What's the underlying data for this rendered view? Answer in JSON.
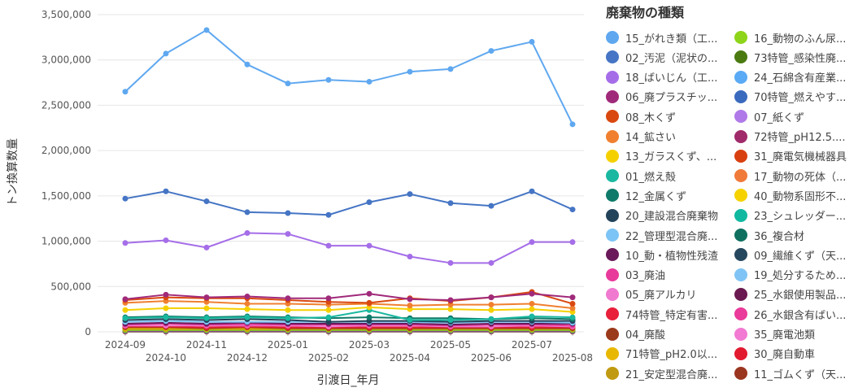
{
  "chart_data": {
    "type": "line",
    "xlabel": "引渡日_年月",
    "ylabel": "トン換算数量",
    "ylim": [
      0,
      3500000
    ],
    "yticks": [
      "0",
      "500,000",
      "1,000,000",
      "1,500,000",
      "2,000,000",
      "2,500,000",
      "3,000,000",
      "3,500,000"
    ],
    "categories": [
      "2024-09",
      "2024-10",
      "2024-11",
      "2024-12",
      "2025-01",
      "2025-02",
      "2025-03",
      "2025-04",
      "2025-05",
      "2025-06",
      "2025-07",
      "2025-08"
    ],
    "legend_title": "廃棄物の種類",
    "legend_placement": "right",
    "grid": true,
    "series": [
      {
        "name": "15_がれき類（工...",
        "color": "#5fa8f0",
        "values": [
          2650000,
          3070000,
          3330000,
          2950000,
          2740000,
          2780000,
          2760000,
          2870000,
          2900000,
          3100000,
          3200000,
          2290000
        ]
      },
      {
        "name": "02_汚泥（泥状の...",
        "color": "#4575c4",
        "values": [
          1470000,
          1550000,
          1440000,
          1320000,
          1310000,
          1290000,
          1430000,
          1520000,
          1420000,
          1390000,
          1550000,
          1350000
        ]
      },
      {
        "name": "18_ばいじん（工...",
        "color": "#a56ee8",
        "values": [
          980000,
          1010000,
          930000,
          1090000,
          1080000,
          950000,
          950000,
          830000,
          760000,
          760000,
          990000,
          990000
        ]
      },
      {
        "name": "06_廃プラスチッ...",
        "color": "#a02a7a",
        "values": [
          360000,
          410000,
          380000,
          390000,
          370000,
          370000,
          420000,
          360000,
          350000,
          380000,
          420000,
          380000
        ]
      },
      {
        "name": "08_木くず",
        "color": "#d9480f",
        "values": [
          350000,
          380000,
          370000,
          370000,
          350000,
          330000,
          320000,
          370000,
          340000,
          380000,
          440000,
          310000
        ]
      },
      {
        "name": "14_鉱さい",
        "color": "#f08030",
        "values": [
          320000,
          340000,
          330000,
          310000,
          310000,
          300000,
          310000,
          290000,
          300000,
          300000,
          310000,
          260000
        ]
      },
      {
        "name": "13_ガラスくず、...",
        "color": "#f5d000",
        "values": [
          240000,
          260000,
          260000,
          250000,
          240000,
          240000,
          270000,
          250000,
          250000,
          240000,
          250000,
          220000
        ]
      },
      {
        "name": "01_燃え殻",
        "color": "#1ab8a0",
        "values": [
          150000,
          160000,
          150000,
          160000,
          150000,
          160000,
          240000,
          130000,
          130000,
          140000,
          170000,
          160000
        ]
      },
      {
        "name": "12_金属くず",
        "color": "#0f7a6a",
        "values": [
          160000,
          170000,
          160000,
          170000,
          160000,
          150000,
          160000,
          150000,
          150000,
          140000,
          150000,
          140000
        ]
      },
      {
        "name": "20_建設混合廃棄物",
        "color": "#23435a",
        "values": [
          130000,
          140000,
          130000,
          140000,
          130000,
          110000,
          120000,
          120000,
          110000,
          120000,
          120000,
          120000
        ]
      },
      {
        "name": "22_管理型混合廃...",
        "color": "#7cc4f5",
        "values": [
          110000,
          120000,
          110000,
          110000,
          110000,
          110000,
          110000,
          110000,
          100000,
          110000,
          110000,
          100000
        ]
      },
      {
        "name": "10_動・植物性残渣",
        "color": "#6a1a5a",
        "values": [
          90000,
          100000,
          90000,
          100000,
          90000,
          90000,
          90000,
          90000,
          80000,
          90000,
          90000,
          90000
        ]
      },
      {
        "name": "03_廃油",
        "color": "#e83a9a",
        "values": [
          80000,
          90000,
          80000,
          80000,
          80000,
          80000,
          80000,
          80000,
          70000,
          80000,
          80000,
          70000
        ]
      },
      {
        "name": "05_廃アルカリ",
        "color": "#f07ad0",
        "values": [
          70000,
          70000,
          70000,
          70000,
          70000,
          60000,
          70000,
          70000,
          60000,
          60000,
          70000,
          60000
        ]
      },
      {
        "name": "74特管_特定有害...",
        "color": "#e8203a",
        "values": [
          60000,
          60000,
          50000,
          60000,
          50000,
          50000,
          50000,
          50000,
          50000,
          50000,
          50000,
          50000
        ]
      },
      {
        "name": "04_廃酸",
        "color": "#9a3a1a",
        "values": [
          50000,
          50000,
          40000,
          50000,
          40000,
          40000,
          40000,
          40000,
          40000,
          40000,
          40000,
          40000
        ]
      },
      {
        "name": "71特管_pH2.0以...",
        "color": "#e8b800",
        "values": [
          40000,
          40000,
          40000,
          40000,
          40000,
          40000,
          40000,
          40000,
          80000,
          40000,
          40000,
          40000
        ]
      },
      {
        "name": "21_安定型混合廃...",
        "color": "#c09a10",
        "values": [
          30000,
          30000,
          30000,
          30000,
          30000,
          30000,
          30000,
          30000,
          30000,
          30000,
          30000,
          30000
        ]
      },
      {
        "name": "16_動物のふん尿...",
        "color": "#8ed41a",
        "values": [
          20000,
          20000,
          20000,
          20000,
          20000,
          20000,
          20000,
          20000,
          20000,
          20000,
          20000,
          20000
        ]
      },
      {
        "name": "73特管_感染性廃...",
        "color": "#4a7a10",
        "values": [
          20000,
          20000,
          20000,
          20000,
          20000,
          20000,
          20000,
          20000,
          20000,
          20000,
          20000,
          20000
        ]
      },
      {
        "name": "24_石綿含有産業...",
        "color": "#5aaaf5",
        "values": [
          20000,
          20000,
          20000,
          20000,
          20000,
          20000,
          20000,
          20000,
          20000,
          20000,
          20000,
          20000
        ]
      },
      {
        "name": "70特管_燃えやす...",
        "color": "#3a6abd",
        "values": [
          15000,
          15000,
          15000,
          15000,
          15000,
          15000,
          15000,
          15000,
          15000,
          15000,
          15000,
          15000
        ]
      },
      {
        "name": "07_紙くず",
        "color": "#b07ae8",
        "values": [
          15000,
          15000,
          15000,
          15000,
          15000,
          15000,
          15000,
          15000,
          15000,
          15000,
          15000,
          15000
        ]
      },
      {
        "name": "72特管_pH12.5....",
        "color": "#a02a6a",
        "values": [
          10000,
          10000,
          10000,
          10000,
          10000,
          10000,
          10000,
          10000,
          10000,
          10000,
          10000,
          10000
        ]
      },
      {
        "name": "31_廃電気機械器具",
        "color": "#d94010",
        "values": [
          10000,
          10000,
          10000,
          10000,
          10000,
          10000,
          10000,
          10000,
          10000,
          10000,
          10000,
          10000
        ]
      },
      {
        "name": "17_動物の死体（...",
        "color": "#f07a3a",
        "values": [
          10000,
          10000,
          10000,
          10000,
          10000,
          10000,
          10000,
          10000,
          10000,
          10000,
          10000,
          10000
        ]
      },
      {
        "name": "40_動物系固形不...",
        "color": "#f5d200",
        "values": [
          8000,
          8000,
          8000,
          8000,
          8000,
          8000,
          8000,
          8000,
          8000,
          8000,
          8000,
          8000
        ]
      },
      {
        "name": "23_シュレッダー...",
        "color": "#10b8a0",
        "values": [
          8000,
          8000,
          8000,
          8000,
          8000,
          8000,
          8000,
          8000,
          8000,
          8000,
          8000,
          8000
        ]
      },
      {
        "name": "36_複合材",
        "color": "#0f7060",
        "values": [
          6000,
          6000,
          6000,
          6000,
          6000,
          6000,
          6000,
          6000,
          6000,
          6000,
          6000,
          6000
        ]
      },
      {
        "name": "09_繊維くず（天...",
        "color": "#26485e",
        "values": [
          6000,
          6000,
          6000,
          6000,
          6000,
          6000,
          6000,
          6000,
          6000,
          6000,
          6000,
          6000
        ]
      },
      {
        "name": "19_処分するため...",
        "color": "#80c4f5",
        "values": [
          5000,
          5000,
          5000,
          5000,
          5000,
          5000,
          5000,
          5000,
          5000,
          5000,
          5000,
          5000
        ]
      },
      {
        "name": "25_水銀使用製品...",
        "color": "#6a1a50",
        "values": [
          4000,
          4000,
          4000,
          4000,
          4000,
          4000,
          4000,
          4000,
          4000,
          4000,
          4000,
          4000
        ]
      },
      {
        "name": "26_水銀含有ばい...",
        "color": "#ea3a9a",
        "values": [
          3000,
          3000,
          3000,
          3000,
          3000,
          3000,
          3000,
          3000,
          3000,
          3000,
          3000,
          3000
        ]
      },
      {
        "name": "35_廃電池類",
        "color": "#f27ad2",
        "values": [
          3000,
          3000,
          3000,
          3000,
          3000,
          3000,
          3000,
          3000,
          3000,
          3000,
          3000,
          3000
        ]
      },
      {
        "name": "30_廃自動車",
        "color": "#e21a30",
        "values": [
          2000,
          2000,
          2000,
          2000,
          2000,
          2000,
          2000,
          2000,
          2000,
          2000,
          2000,
          2000
        ]
      },
      {
        "name": "11_ゴムくず（天...",
        "color": "#9a3520",
        "values": [
          2000,
          2000,
          2000,
          2000,
          2000,
          2000,
          2000,
          2000,
          2000,
          2000,
          2000,
          2000
        ]
      }
    ]
  }
}
